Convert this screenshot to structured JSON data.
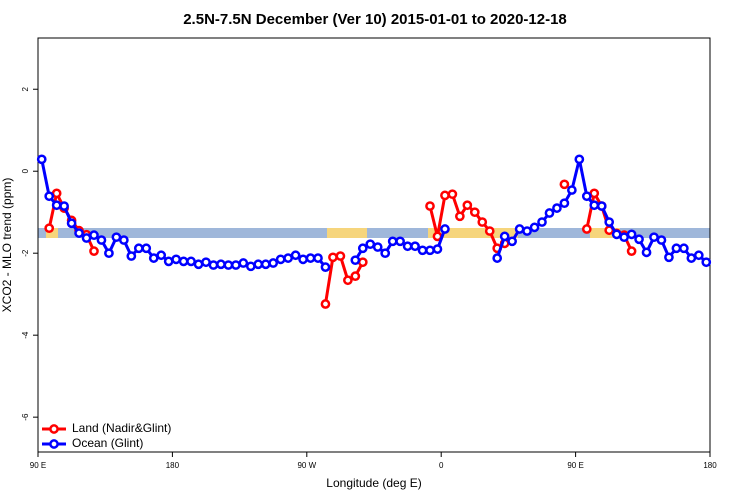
{
  "chart_data": {
    "type": "line",
    "title": "2.5N-7.5N December (Ver 10)   2015-01-01 to 2020-12-18",
    "x_label": "Longitude (deg E)",
    "y_label": "XCO2 - MLO trend (ppm)",
    "xlim": [
      90,
      540
    ],
    "ylim": [
      -6.85,
      3.25
    ],
    "xticks": [
      {
        "value": 90,
        "label": "90 E"
      },
      180,
      {
        "value": 270,
        "label": "90 W"
      },
      {
        "value": 360,
        "label": "0"
      },
      {
        "value": 450,
        "label": "90 E"
      },
      {
        "value": 540,
        "label": "180"
      }
    ],
    "yticks": [
      2,
      0,
      -2,
      -4,
      -6
    ],
    "legend": "bottom-left",
    "x": [
      92.5,
      97.5,
      102.5,
      107.5,
      112.5,
      117.5,
      122.5,
      127.5,
      132.5,
      137.5,
      142.5,
      147.5,
      152.5,
      157.5,
      162.5,
      167.5,
      172.5,
      177.5,
      182.5,
      187.5,
      192.5,
      197.5,
      202.5,
      207.5,
      212.5,
      217.5,
      222.5,
      227.5,
      232.5,
      237.5,
      242.5,
      247.5,
      252.5,
      257.5,
      262.5,
      267.5,
      272.5,
      277.5,
      282.5,
      287.5,
      292.5,
      297.5,
      302.5,
      307.5,
      312.5,
      317.5,
      322.5,
      327.5,
      332.5,
      337.5,
      342.5,
      347.5,
      352.5,
      357.5,
      362.5,
      367.5,
      372.5,
      377.5,
      382.5,
      387.5,
      392.5,
      397.5,
      402.5,
      407.5,
      412.5,
      417.5,
      422.5,
      427.5,
      432.5,
      437.5,
      442.5,
      447.5,
      452.5,
      457.5,
      462.5,
      467.5,
      472.5,
      477.5,
      482.5,
      487.5,
      492.5,
      497.5,
      502.5,
      507.5,
      512.5,
      517.5,
      522.5,
      527.5,
      532.5,
      537.5
    ],
    "series": [
      {
        "name": "Land (Nadir&Glint)",
        "color": "#ff0000",
        "values": [
          null,
          -1.39,
          -0.54,
          -0.9,
          -1.2,
          -1.45,
          -1.55,
          -1.95,
          null,
          null,
          null,
          null,
          null,
          null,
          null,
          null,
          null,
          null,
          null,
          null,
          null,
          null,
          null,
          null,
          null,
          null,
          null,
          null,
          null,
          null,
          null,
          null,
          null,
          null,
          null,
          null,
          null,
          null,
          -3.24,
          -2.1,
          -2.07,
          -2.66,
          -2.56,
          -2.22,
          null,
          null,
          null,
          null,
          null,
          null,
          null,
          null,
          -0.85,
          -1.59,
          -0.59,
          -0.56,
          -1.1,
          -0.83,
          -1.0,
          -1.24,
          -1.46,
          -1.88,
          -1.76,
          null,
          null,
          null,
          null,
          null,
          null,
          null,
          -0.32,
          null,
          null,
          -1.41,
          -0.54,
          -0.85,
          -1.44,
          -1.52,
          -1.56,
          -1.95,
          null,
          null,
          null,
          null,
          null,
          null,
          null,
          null,
          null,
          null
        ]
      },
      {
        "name": "Ocean (Glint)",
        "color": "#0000ff",
        "values": [
          0.29,
          -0.61,
          -0.83,
          -0.85,
          -1.27,
          -1.51,
          -1.63,
          -1.56,
          -1.68,
          -2.0,
          -1.61,
          -1.68,
          -2.07,
          -1.88,
          -1.88,
          -2.12,
          -2.05,
          -2.2,
          -2.15,
          -2.2,
          -2.2,
          -2.27,
          -2.22,
          -2.29,
          -2.27,
          -2.29,
          -2.29,
          -2.24,
          -2.32,
          -2.27,
          -2.27,
          -2.24,
          -2.15,
          -2.12,
          -2.05,
          -2.15,
          -2.12,
          -2.12,
          -2.34,
          null,
          null,
          null,
          -2.17,
          -1.88,
          -1.78,
          -1.85,
          -2.0,
          -1.71,
          -1.71,
          -1.83,
          -1.83,
          -1.93,
          -1.93,
          -1.9,
          -1.41,
          null,
          null,
          null,
          null,
          null,
          null,
          -2.12,
          -1.59,
          -1.71,
          -1.41,
          -1.46,
          -1.37,
          -1.24,
          -1.02,
          -0.9,
          -0.78,
          -0.46,
          0.29,
          -0.61,
          -0.83,
          -0.85,
          -1.24,
          -1.54,
          -1.61,
          -1.54,
          -1.66,
          -1.98,
          -1.61,
          -1.68,
          -2.1,
          -1.88,
          -1.88,
          -2.12,
          -2.05,
          -2.22
        ]
      }
    ]
  }
}
